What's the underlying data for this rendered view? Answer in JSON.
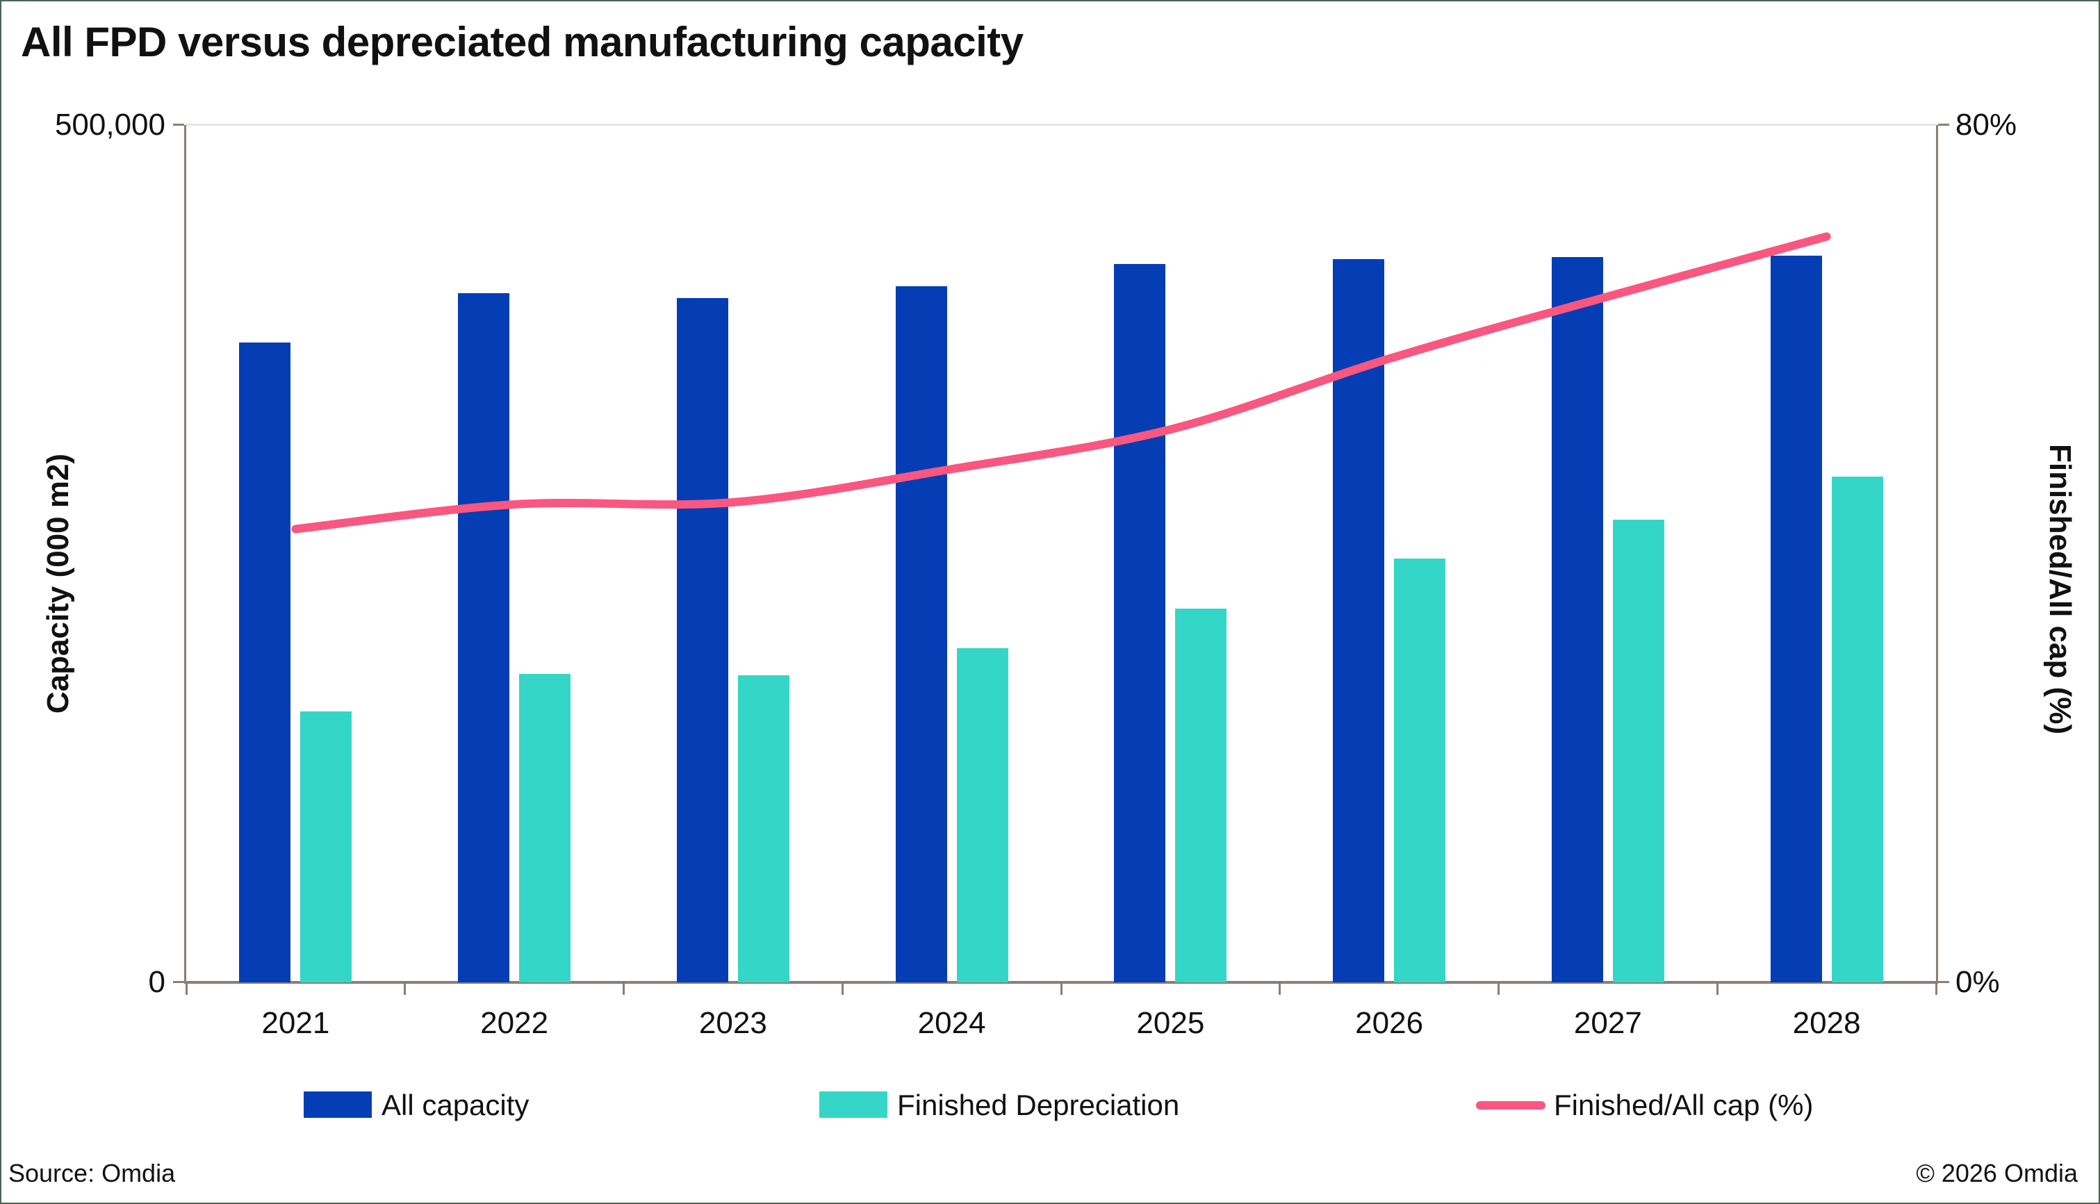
{
  "title": "All FPD versus depreciated manufacturing capacity",
  "footer": {
    "source": "Source: Omdia",
    "copyright": "© 2026 Omdia"
  },
  "left_axis": {
    "title": "Capacity (000 m2)",
    "top_label": "500,000",
    "bottom_label": "0"
  },
  "right_axis": {
    "title": "Finished/All cap (%)",
    "top_label": "80%",
    "bottom_label": "0%"
  },
  "legend": {
    "items": [
      {
        "label": "All capacity",
        "swatch": "bar",
        "color": "#053DB5"
      },
      {
        "label": "Finished Depreciation",
        "swatch": "bar",
        "color": "#34D6C7"
      },
      {
        "label": "Finished/All cap (%)",
        "swatch": "line",
        "color": "#F9577F"
      }
    ]
  },
  "colors": {
    "all_capacity_bar": "#053DB5",
    "finished_depreciation_bar": "#34D6C7",
    "ratio_line": "#F9577F",
    "axis": "#8B7E74",
    "gridline": "#E8E5E2",
    "text": "#111111",
    "background": "#FFFFFF",
    "frame_border": "#4A635A"
  },
  "chart_data": {
    "type": "bar",
    "subtype": "grouped bars with secondary-axis line",
    "title": "All FPD versus depreciated manufacturing capacity",
    "categories": [
      "2021",
      "2022",
      "2023",
      "2024",
      "2025",
      "2026",
      "2027",
      "2028"
    ],
    "series": [
      {
        "name": "All capacity",
        "type": "bar",
        "axis": "left",
        "color": "#053DB5",
        "values": [
          373000,
          402000,
          399000,
          406000,
          419000,
          422000,
          423000,
          424000
        ]
      },
      {
        "name": "Finished Depreciation",
        "type": "bar",
        "axis": "left",
        "color": "#34D6C7",
        "values": [
          158000,
          180000,
          179000,
          195000,
          218000,
          247000,
          270000,
          295000
        ]
      },
      {
        "name": "Finished/All cap (%)",
        "type": "line",
        "axis": "right",
        "color": "#F9577F",
        "values": [
          42.3,
          44.6,
          44.8,
          47.9,
          51.6,
          58.2,
          64.0,
          69.6
        ]
      }
    ],
    "left_ylabel": "Capacity (000 m2)",
    "right_ylabel": "Finished/All cap (%)",
    "left_ylim": [
      0,
      500000
    ],
    "right_ylim": [
      0,
      80
    ],
    "left_ticks": [
      0,
      500000
    ],
    "right_ticks": [
      0,
      80
    ],
    "grid": "single top gridline at 500,000 / 80%",
    "legend_position": "bottom"
  }
}
